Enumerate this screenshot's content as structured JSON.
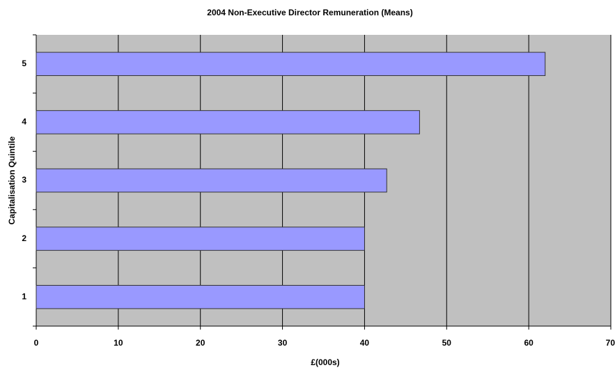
{
  "chart_data": {
    "type": "bar",
    "orientation": "horizontal",
    "title": "2004 Non-Executive Director Remuneration (Means)",
    "x_label": "£(000s)",
    "y_label": "Capitalisation Quintile",
    "categories": [
      "1",
      "2",
      "3",
      "4",
      "5"
    ],
    "values": [
      40.0,
      40.0,
      42.7,
      46.7,
      62.0
    ],
    "color": "#9999ff",
    "xlim": [
      0,
      70
    ],
    "xticks": [
      0,
      10,
      20,
      30,
      40,
      50,
      60,
      70
    ],
    "grid": true
  }
}
